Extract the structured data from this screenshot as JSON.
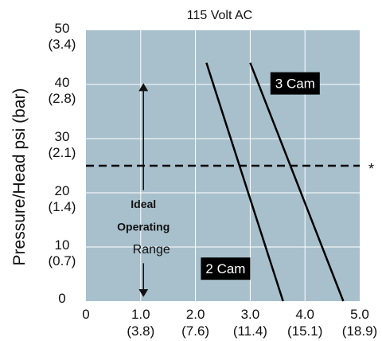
{
  "chart_data": {
    "type": "line",
    "title": "115 Volt AC",
    "xlabel": "",
    "ylabel": "Pressure/Head psi (bar)",
    "xlim": [
      0,
      5.0
    ],
    "ylim": [
      0,
      50
    ],
    "grid": true,
    "x_ticks": [
      {
        "value": 0,
        "label": "0",
        "sub": ""
      },
      {
        "value": 1.0,
        "label": "1.0",
        "sub": "(3.8)"
      },
      {
        "value": 2.0,
        "label": "2.0",
        "sub": "(7.6)"
      },
      {
        "value": 3.0,
        "label": "3.0",
        "sub": "(11.4)"
      },
      {
        "value": 4.0,
        "label": "4.0",
        "sub": "(15.1)"
      },
      {
        "value": 5.0,
        "label": "5.0",
        "sub": "(18.9)"
      }
    ],
    "y_ticks": [
      {
        "value": 0,
        "label": "0",
        "sub": ""
      },
      {
        "value": 10,
        "label": "10",
        "sub": "(0.7)"
      },
      {
        "value": 20,
        "label": "20",
        "sub": "(1.4)"
      },
      {
        "value": 30,
        "label": "30",
        "sub": "(2.1)"
      },
      {
        "value": 40,
        "label": "40",
        "sub": "(2.8)"
      },
      {
        "value": 50,
        "label": "50",
        "sub": "(3.4)"
      }
    ],
    "series": [
      {
        "name": "2 Cam",
        "x": [
          2.2,
          3.6
        ],
        "y": [
          44,
          0
        ]
      },
      {
        "name": "3 Cam",
        "x": [
          3.0,
          4.7
        ],
        "y": [
          44,
          0
        ]
      }
    ],
    "reference_line": {
      "y": 25,
      "style": "dashed",
      "marker": "*"
    },
    "annotation": {
      "lines": [
        "Ideal",
        "Operating",
        "Range"
      ],
      "y_from": 1.5,
      "y_to": 39.5,
      "x": 1.05
    },
    "colors": {
      "plot_background": "#a8c0cc",
      "grid": "#ffffff",
      "line": "#000000",
      "label_box": "#000000"
    }
  }
}
